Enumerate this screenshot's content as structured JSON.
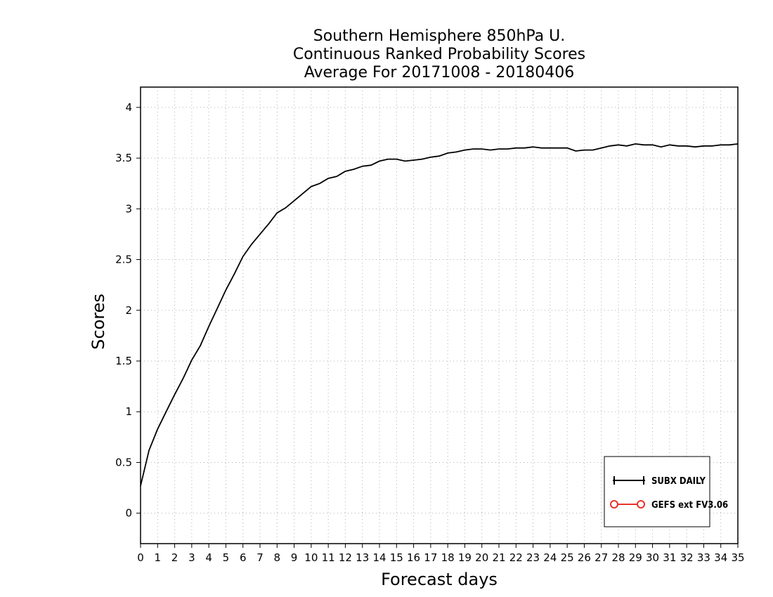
{
  "chart_data": {
    "type": "line",
    "title": [
      "Southern Hemisphere 850hPa U.",
      "Continuous Ranked Probability Scores",
      "Average For 20171008 - 20180406"
    ],
    "xlabel": "Forecast days",
    "ylabel": "Scores",
    "xlim": [
      0,
      35
    ],
    "ylim": [
      -0.3,
      4.2
    ],
    "xticks": [
      0,
      1,
      2,
      3,
      4,
      5,
      6,
      7,
      8,
      9,
      10,
      11,
      12,
      13,
      14,
      15,
      16,
      17,
      18,
      19,
      20,
      21,
      22,
      23,
      24,
      25,
      26,
      27,
      28,
      29,
      30,
      31,
      32,
      33,
      34,
      35
    ],
    "yticks": [
      0,
      0.5,
      1,
      1.5,
      2,
      2.5,
      3,
      3.5,
      4
    ],
    "ytick_labels": [
      "0",
      "0.5",
      "1",
      "1.5",
      "2",
      "2.5",
      "3",
      "3.5",
      "4"
    ],
    "grid": true,
    "legend_position": "bottom-right",
    "legend": [
      {
        "name": "SUBX DAILY",
        "color": "#000000",
        "marker": "plus"
      },
      {
        "name": "GEFS ext FV3.06",
        "color": "#e8332a",
        "marker": "circle"
      }
    ],
    "series": [
      {
        "name": "SUBX DAILY",
        "color": "#000000",
        "x": [
          0,
          0.5,
          1,
          1.5,
          2,
          2.5,
          3,
          3.5,
          4,
          4.5,
          5,
          5.5,
          6,
          6.5,
          7,
          7.5,
          8,
          8.5,
          9,
          9.5,
          10,
          10.5,
          11,
          11.5,
          12,
          12.5,
          13,
          13.5,
          14,
          14.5,
          15,
          15.5,
          16,
          16.5,
          17,
          17.5,
          18,
          18.5,
          19,
          19.5,
          20,
          20.5,
          21,
          21.5,
          22,
          22.5,
          23,
          23.5,
          24,
          24.5,
          25,
          25.5,
          26,
          26.5,
          27,
          27.5,
          28,
          28.5,
          29,
          29.5,
          30,
          30.5,
          31,
          31.5,
          32,
          32.5,
          33,
          33.5,
          34,
          34.5,
          35
        ],
        "y": [
          0.27,
          0.62,
          0.83,
          1.0,
          1.17,
          1.33,
          1.51,
          1.65,
          1.84,
          2.02,
          2.2,
          2.36,
          2.53,
          2.65,
          2.75,
          2.85,
          2.96,
          3.01,
          3.08,
          3.15,
          3.22,
          3.25,
          3.3,
          3.32,
          3.37,
          3.39,
          3.42,
          3.43,
          3.47,
          3.49,
          3.49,
          3.47,
          3.48,
          3.49,
          3.51,
          3.52,
          3.55,
          3.56,
          3.58,
          3.59,
          3.59,
          3.58,
          3.59,
          3.59,
          3.6,
          3.6,
          3.61,
          3.6,
          3.6,
          3.6,
          3.6,
          3.57,
          3.58,
          3.58,
          3.6,
          3.62,
          3.63,
          3.62,
          3.64,
          3.63,
          3.63,
          3.61,
          3.63,
          3.62,
          3.62,
          3.61,
          3.62,
          3.62,
          3.63,
          3.63,
          3.64
        ]
      }
    ]
  }
}
